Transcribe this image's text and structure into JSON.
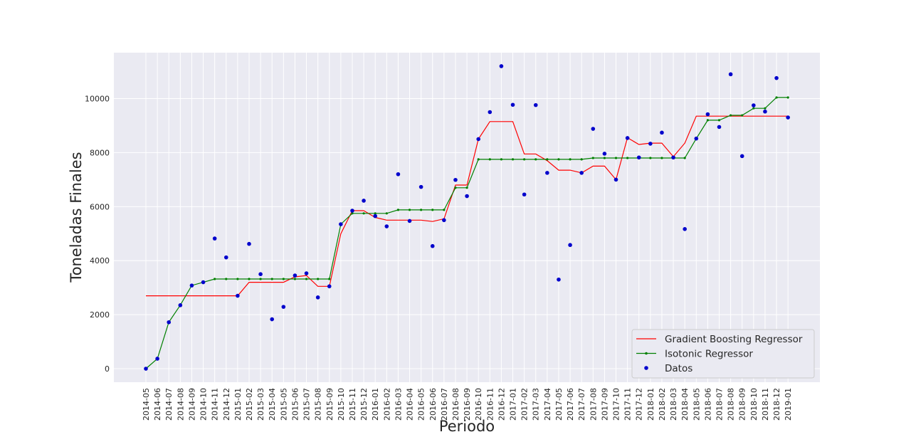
{
  "chart_data": {
    "type": "line",
    "title": "",
    "xlabel": "Periodo",
    "ylabel": "Toneladas Finales",
    "ylim": [
      -500,
      11700
    ],
    "yticks": [
      0,
      2000,
      4000,
      6000,
      8000,
      10000
    ],
    "grid": true,
    "legend_position": "lower-right",
    "categories": [
      "2014-05",
      "2014-06",
      "2014-07",
      "2014-08",
      "2014-09",
      "2014-10",
      "2014-11",
      "2014-12",
      "2015-01",
      "2015-02",
      "2015-03",
      "2015-04",
      "2015-05",
      "2015-06",
      "2015-07",
      "2015-08",
      "2015-09",
      "2015-10",
      "2015-11",
      "2015-12",
      "2016-01",
      "2016-02",
      "2016-03",
      "2016-04",
      "2016-05",
      "2016-06",
      "2016-07",
      "2016-08",
      "2016-09",
      "2016-10",
      "2016-11",
      "2016-12",
      "2017-01",
      "2017-02",
      "2017-03",
      "2017-04",
      "2017-05",
      "2017-06",
      "2017-07",
      "2017-08",
      "2017-09",
      "2017-10",
      "2017-11",
      "2017-12",
      "2018-01",
      "2018-02",
      "2018-03",
      "2018-04",
      "2018-05",
      "2018-06",
      "2018-07",
      "2018-08",
      "2018-09",
      "2018-10",
      "2018-11",
      "2018-12",
      "2019-01"
    ],
    "series": [
      {
        "name": "Gradient Boosting Regressor",
        "color": "#ff0000",
        "style": "line",
        "values": [
          2700,
          2700,
          2700,
          2700,
          2700,
          2700,
          2700,
          2700,
          2700,
          3200,
          3200,
          3200,
          3200,
          3400,
          3450,
          3050,
          3050,
          5000,
          5850,
          5850,
          5600,
          5500,
          5500,
          5500,
          5500,
          5450,
          5550,
          6800,
          6800,
          8500,
          9150,
          9150,
          9150,
          7950,
          7950,
          7700,
          7350,
          7350,
          7250,
          7500,
          7500,
          7000,
          8550,
          8300,
          8350,
          8350,
          7850,
          8350,
          9350,
          9350,
          9350,
          9350,
          9350,
          9350,
          9350,
          9350,
          9350
        ]
      },
      {
        "name": "Isotonic Regressor",
        "color": "#008000",
        "style": "line-marker",
        "values": [
          0,
          370,
          1720,
          2350,
          3080,
          3200,
          3320,
          3320,
          3320,
          3320,
          3320,
          3320,
          3320,
          3320,
          3320,
          3320,
          3320,
          5350,
          5750,
          5750,
          5750,
          5750,
          5880,
          5880,
          5880,
          5880,
          5880,
          6700,
          6700,
          7750,
          7750,
          7750,
          7750,
          7750,
          7750,
          7750,
          7750,
          7750,
          7750,
          7800,
          7800,
          7800,
          7800,
          7800,
          7800,
          7800,
          7800,
          7800,
          8520,
          9200,
          9200,
          9380,
          9380,
          9640,
          9640,
          10040,
          10040
        ]
      },
      {
        "name": "Datos",
        "color": "#0000cc",
        "style": "scatter",
        "values": [
          0,
          370,
          1720,
          2350,
          3080,
          3200,
          4820,
          4120,
          2700,
          4620,
          3500,
          1830,
          2290,
          3450,
          3530,
          2640,
          3050,
          5350,
          5850,
          6220,
          5650,
          5270,
          7200,
          5470,
          6730,
          4540,
          5500,
          6990,
          6390,
          8500,
          9500,
          11200,
          9770,
          6450,
          9760,
          7250,
          3300,
          4580,
          7250,
          8880,
          7960,
          7000,
          8540,
          7820,
          8330,
          8740,
          7820,
          5170,
          8520,
          9420,
          8950,
          10900,
          7870,
          9750,
          9520,
          10760,
          9300
        ]
      }
    ]
  }
}
